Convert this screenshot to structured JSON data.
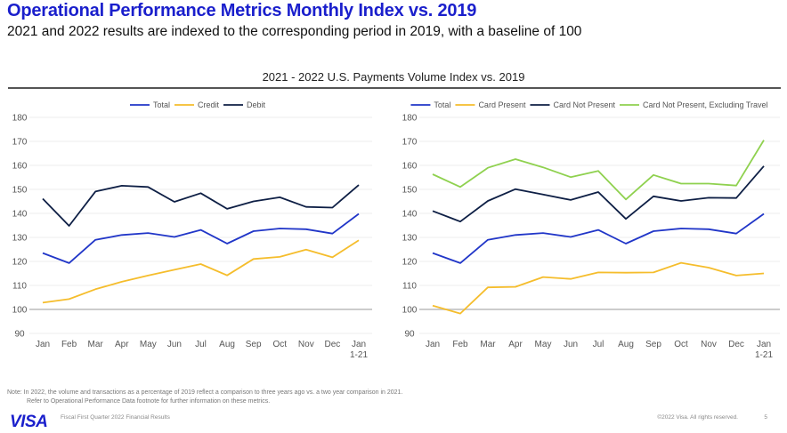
{
  "header": {
    "title": "Operational Performance Metrics Monthly Index vs. 2019",
    "subtitle": "2021 and 2022 results are indexed to the corresponding period in 2019, with a baseline of 100",
    "section_title": "2021 - 2022 U.S. Payments Volume Index vs. 2019"
  },
  "colors": {
    "title": "#1a1fcc",
    "total": "#2136c8",
    "credit": "#f5bd2c",
    "debit": "#0e1f45",
    "card_present": "#f5bd2c",
    "card_not_present": "#0e1f45",
    "cnp_excl_travel": "#8fd14f",
    "baseline": "#cccccc",
    "grid": "#eeeeee"
  },
  "chart_data": [
    {
      "type": "line",
      "title": "",
      "xlabel": "",
      "ylabel": "",
      "categories": [
        "Jan",
        "Feb",
        "Mar",
        "Apr",
        "May",
        "Jun",
        "Jul",
        "Aug",
        "Sep",
        "Oct",
        "Nov",
        "Dec",
        "Jan 1-21"
      ],
      "category_lines": [
        [
          "Jan"
        ],
        [
          "Feb"
        ],
        [
          "Mar"
        ],
        [
          "Apr"
        ],
        [
          "May"
        ],
        [
          "Jun"
        ],
        [
          "Jul"
        ],
        [
          "Aug"
        ],
        [
          "Sep"
        ],
        [
          "Oct"
        ],
        [
          "Nov"
        ],
        [
          "Dec"
        ],
        [
          "Jan",
          "1-21"
        ]
      ],
      "ylim": [
        90,
        180
      ],
      "yticks": [
        90,
        100,
        110,
        120,
        130,
        140,
        150,
        160,
        170,
        180
      ],
      "baseline": 100,
      "grid": true,
      "legend_position": "top-center",
      "series": [
        {
          "name": "Total",
          "color_key": "total",
          "values": [
            123.5,
            119.3,
            129,
            131,
            131.8,
            130.2,
            133.1,
            127.4,
            132.6,
            133.7,
            133.4,
            131.6,
            139.8
          ]
        },
        {
          "name": "Credit",
          "color_key": "credit",
          "values": [
            102.8,
            104.3,
            108.4,
            111.5,
            114.1,
            116.5,
            118.9,
            114.2,
            121,
            121.9,
            124.9,
            121.7,
            128.8
          ]
        },
        {
          "name": "Debit",
          "color_key": "debit",
          "values": [
            146.1,
            134.8,
            149.1,
            151.5,
            151,
            144.8,
            148.4,
            141.9,
            145,
            146.7,
            142.7,
            142.4,
            151.8
          ]
        }
      ]
    },
    {
      "type": "line",
      "title": "",
      "xlabel": "",
      "ylabel": "",
      "categories": [
        "Jan",
        "Feb",
        "Mar",
        "Apr",
        "May",
        "Jun",
        "Jul",
        "Aug",
        "Sep",
        "Oct",
        "Nov",
        "Dec",
        "Jan 1-21"
      ],
      "category_lines": [
        [
          "Jan"
        ],
        [
          "Feb"
        ],
        [
          "Mar"
        ],
        [
          "Apr"
        ],
        [
          "May"
        ],
        [
          "Jun"
        ],
        [
          "Jul"
        ],
        [
          "Aug"
        ],
        [
          "Sep"
        ],
        [
          "Oct"
        ],
        [
          "Nov"
        ],
        [
          "Dec"
        ],
        [
          "Jan",
          "1-21"
        ]
      ],
      "ylim": [
        90,
        180
      ],
      "yticks": [
        90,
        100,
        110,
        120,
        130,
        140,
        150,
        160,
        170,
        180
      ],
      "baseline": 100,
      "grid": true,
      "legend_position": "top-center",
      "series": [
        {
          "name": "Total",
          "color_key": "total",
          "values": [
            123.5,
            119.3,
            129,
            131,
            131.8,
            130.2,
            133.1,
            127.4,
            132.6,
            133.7,
            133.4,
            131.6,
            139.8
          ]
        },
        {
          "name": "Card Present",
          "color_key": "card_present",
          "values": [
            101.6,
            98.3,
            109.2,
            109.4,
            113.5,
            112.7,
            115.4,
            115.3,
            115.4,
            119.4,
            117.4,
            114.1,
            115
          ]
        },
        {
          "name": "Card Not Present",
          "color_key": "card_not_present",
          "values": [
            141,
            136.6,
            145.2,
            150.1,
            147.9,
            145.6,
            148.9,
            137.7,
            147.1,
            145.2,
            146.5,
            146.4,
            159.7
          ]
        },
        {
          "name": "Card Not Present, Excluding Travel",
          "color_key": "cnp_excl_travel",
          "values": [
            156.3,
            151,
            159,
            162.6,
            159.2,
            155.1,
            157.7,
            145.8,
            156,
            152.4,
            152.4,
            151.6,
            170.5
          ]
        }
      ]
    }
  ],
  "footer": {
    "note_line1": "Note: In 2022, the volume and transactions as a percentage of 2019 reflect a comparison to three years ago vs. a two year comparison in 2021.",
    "note_line2": "Refer to Operational Performance Data footnote for further information on these metrics.",
    "logo": "VISA",
    "doc_title": "Fiscal First Quarter 2022 Financial Results",
    "copyright": "©2022 Visa. All rights reserved.",
    "page_number": "5"
  }
}
